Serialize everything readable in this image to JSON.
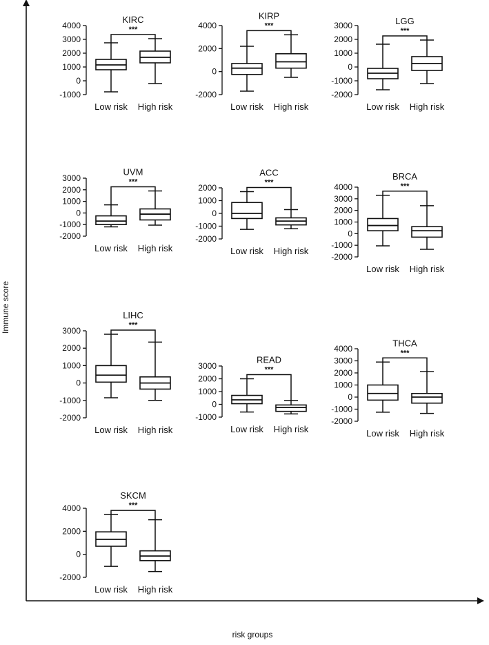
{
  "figure": {
    "global_xlabel": "risk groups",
    "global_ylabel": "Immune score"
  },
  "chart_data": [
    {
      "type": "box",
      "title": "KIRC",
      "categories": [
        "Low risk",
        "High risk"
      ],
      "significance": "***",
      "ylim": [
        -1000,
        4000
      ],
      "yticks": [
        -1000,
        0,
        1000,
        2000,
        3000,
        4000
      ],
      "boxes": [
        {
          "min": -800,
          "q1": 800,
          "median": 1150,
          "q3": 1550,
          "max": 2750
        },
        {
          "min": -200,
          "q1": 1300,
          "median": 1700,
          "q3": 2150,
          "max": 3050
        }
      ]
    },
    {
      "type": "box",
      "title": "KIRP",
      "categories": [
        "Low risk",
        "High risk"
      ],
      "significance": "***",
      "ylim": [
        -2000,
        4000
      ],
      "yticks": [
        -2000,
        0,
        2000,
        4000
      ],
      "boxes": [
        {
          "min": -1700,
          "q1": -250,
          "median": 300,
          "q3": 700,
          "max": 2200
        },
        {
          "min": -500,
          "q1": 300,
          "median": 850,
          "q3": 1550,
          "max": 3200
        }
      ]
    },
    {
      "type": "box",
      "title": "LGG",
      "categories": [
        "Low risk",
        "High risk"
      ],
      "significance": "***",
      "ylim": [
        -2000,
        3000
      ],
      "yticks": [
        -2000,
        -1000,
        0,
        1000,
        2000,
        3000
      ],
      "boxes": [
        {
          "min": -1650,
          "q1": -850,
          "median": -450,
          "q3": -100,
          "max": 1650
        },
        {
          "min": -1200,
          "q1": -250,
          "median": 250,
          "q3": 750,
          "max": 1950
        }
      ]
    },
    {
      "type": "box",
      "title": "UVM",
      "categories": [
        "Low risk",
        "High risk"
      ],
      "significance": "***",
      "ylim": [
        -2000,
        3000
      ],
      "yticks": [
        -2000,
        -1000,
        0,
        1000,
        2000,
        3000
      ],
      "boxes": [
        {
          "min": -1200,
          "q1": -1000,
          "median": -700,
          "q3": -250,
          "max": 700
        },
        {
          "min": -1050,
          "q1": -600,
          "median": -100,
          "q3": 350,
          "max": 1900
        }
      ]
    },
    {
      "type": "box",
      "title": "ACC",
      "categories": [
        "Low risk",
        "High risk"
      ],
      "significance": "***",
      "ylim": [
        -2000,
        2000
      ],
      "yticks": [
        -2000,
        -1000,
        0,
        1000,
        2000
      ],
      "boxes": [
        {
          "min": -1250,
          "q1": -400,
          "median": 0,
          "q3": 850,
          "max": 1700
        },
        {
          "min": -1200,
          "q1": -900,
          "median": -600,
          "q3": -350,
          "max": 300
        }
      ]
    },
    {
      "type": "box",
      "title": "BRCA",
      "categories": [
        "Low risk",
        "High risk"
      ],
      "significance": "***",
      "ylim": [
        -2000,
        4000
      ],
      "yticks": [
        -2000,
        -1000,
        0,
        1000,
        2000,
        3000,
        4000
      ],
      "boxes": [
        {
          "min": -1050,
          "q1": 250,
          "median": 700,
          "q3": 1300,
          "max": 3300
        },
        {
          "min": -1350,
          "q1": -300,
          "median": 250,
          "q3": 600,
          "max": 2400
        }
      ]
    },
    {
      "type": "box",
      "title": "LIHC",
      "categories": [
        "Low risk",
        "High risk"
      ],
      "significance": "***",
      "ylim": [
        -2000,
        3000
      ],
      "yticks": [
        -2000,
        -1000,
        0,
        1000,
        2000,
        3000
      ],
      "boxes": [
        {
          "min": -850,
          "q1": 50,
          "median": 450,
          "q3": 1000,
          "max": 2800
        },
        {
          "min": -1000,
          "q1": -350,
          "median": 0,
          "q3": 350,
          "max": 2350
        }
      ]
    },
    {
      "type": "box",
      "title": "READ",
      "categories": [
        "Low risk",
        "High risk"
      ],
      "significance": "***",
      "ylim": [
        -1000,
        3000
      ],
      "yticks": [
        -1000,
        0,
        1000,
        2000,
        3000
      ],
      "boxes": [
        {
          "min": -600,
          "q1": 50,
          "median": 350,
          "q3": 700,
          "max": 2000
        },
        {
          "min": -750,
          "q1": -550,
          "median": -250,
          "q3": -50,
          "max": 300
        }
      ]
    },
    {
      "type": "box",
      "title": "THCA",
      "categories": [
        "Low risk",
        "High risk"
      ],
      "significance": "***",
      "ylim": [
        -2000,
        4000
      ],
      "yticks": [
        -2000,
        -1000,
        0,
        1000,
        2000,
        3000,
        4000
      ],
      "boxes": [
        {
          "min": -1250,
          "q1": -250,
          "median": 300,
          "q3": 1000,
          "max": 2900
        },
        {
          "min": -1350,
          "q1": -500,
          "median": 0,
          "q3": 300,
          "max": 2100
        }
      ]
    },
    {
      "type": "box",
      "title": "SKCM",
      "categories": [
        "Low risk",
        "High risk"
      ],
      "significance": "***",
      "ylim": [
        -2000,
        4000
      ],
      "yticks": [
        -2000,
        0,
        2000,
        4000
      ],
      "boxes": [
        {
          "min": -1050,
          "q1": 700,
          "median": 1300,
          "q3": 1950,
          "max": 3450
        },
        {
          "min": -1500,
          "q1": -550,
          "median": -150,
          "q3": 300,
          "max": 3000
        }
      ]
    }
  ]
}
